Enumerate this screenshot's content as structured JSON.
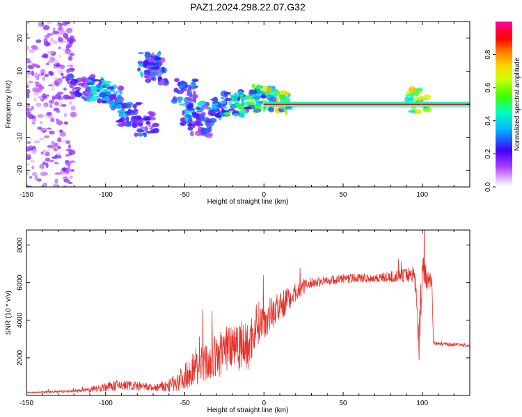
{
  "title": "PAZ1.2024.298.22.07.G32",
  "chart_data": [
    {
      "type": "heatmap",
      "xlabel": "Height of straight line (km)",
      "ylabel": "Frequency (Hz)",
      "xlim": [
        -150,
        130
      ],
      "ylim": [
        -25,
        25
      ],
      "xticks": [
        "-150",
        "-100",
        "-50",
        "0",
        "50",
        "100"
      ],
      "yticks": [
        "-20",
        "-10",
        "0",
        "10",
        "20"
      ],
      "colorbar": {
        "label": "Normalized spectral amplitude",
        "range": [
          0,
          1
        ],
        "ticks": [
          "0.0",
          "0.2",
          "0.4",
          "0.6",
          "0.8"
        ],
        "colormap": "rainbow (white, violet, blue, cyan, green, yellow, orange, red, magenta)"
      },
      "features": {
        "carrier_line": {
          "x_from": 0,
          "x_to": 130,
          "frequency": 0,
          "amplitude": 0.9
        },
        "diffuse_scatter": {
          "x_from": -150,
          "x_to": -120,
          "frequency_range": [
            -25,
            25
          ],
          "amplitude": 0.15
        },
        "clusters": [
          {
            "x": -115,
            "f": 5,
            "amplitude": 0.25
          },
          {
            "x": -105,
            "f": 4,
            "amplitude": 0.35
          },
          {
            "x": -95,
            "f": 2,
            "amplitude": 0.3
          },
          {
            "x": -85,
            "f": -3,
            "amplitude": 0.3
          },
          {
            "x": -75,
            "f": -6,
            "amplitude": 0.25
          },
          {
            "x": -72,
            "f": 12,
            "amplitude": 0.3
          },
          {
            "x": -68,
            "f": 10,
            "amplitude": 0.25
          },
          {
            "x": -50,
            "f": 4,
            "amplitude": 0.3
          },
          {
            "x": -45,
            "f": -3,
            "amplitude": 0.35
          },
          {
            "x": -40,
            "f": -6,
            "amplitude": 0.25
          },
          {
            "x": -30,
            "f": -2,
            "amplitude": 0.3
          },
          {
            "x": -20,
            "f": 0,
            "amplitude": 0.45
          },
          {
            "x": -10,
            "f": 1,
            "amplitude": 0.5
          },
          {
            "x": 0,
            "f": 2,
            "amplitude": 0.55
          },
          {
            "x": 10,
            "f": 1,
            "amplitude": 0.6
          },
          {
            "x": 97,
            "f": 1,
            "amplitude": 0.6
          }
        ]
      }
    },
    {
      "type": "line",
      "xlabel": "Height of straight line (km)",
      "ylabel": "SNR (10 * v/v)",
      "xlim": [
        -150,
        130
      ],
      "ylim": [
        0,
        8800
      ],
      "xticks": [
        "-150",
        "-100",
        "-50",
        "0",
        "50",
        "100"
      ],
      "yticks": [
        "2000",
        "4000",
        "6000",
        "8000"
      ],
      "series": [
        {
          "color": "#e8302a",
          "x": [
            -150,
            -140,
            -130,
            -120,
            -110,
            -100,
            -90,
            -80,
            -70,
            -60,
            -50,
            -45,
            -40,
            -35,
            -30,
            -25,
            -20,
            -15,
            -10,
            -5,
            0,
            5,
            10,
            20,
            30,
            40,
            50,
            60,
            70,
            80,
            90,
            95,
            98,
            100,
            103,
            106,
            107,
            110,
            120,
            130
          ],
          "y": [
            150,
            170,
            200,
            230,
            300,
            450,
            550,
            500,
            400,
            500,
            1000,
            1400,
            1600,
            1800,
            2000,
            2400,
            2900,
            2800,
            2500,
            3800,
            4000,
            4400,
            4700,
            5500,
            6000,
            6100,
            6200,
            6250,
            6250,
            6300,
            6400,
            6500,
            3000,
            6800,
            6200,
            6100,
            2800,
            2750,
            2700,
            2650
          ],
          "noise": [
            30,
            50,
            60,
            80,
            150,
            250,
            300,
            250,
            200,
            350,
            700,
            900,
            1000,
            1100,
            1200,
            1300,
            1500,
            1500,
            1300,
            1200,
            1000,
            900,
            800,
            500,
            300,
            250,
            250,
            250,
            250,
            300,
            400,
            500,
            1200,
            1000,
            600,
            400,
            150,
            100,
            100,
            100
          ]
        }
      ]
    }
  ]
}
